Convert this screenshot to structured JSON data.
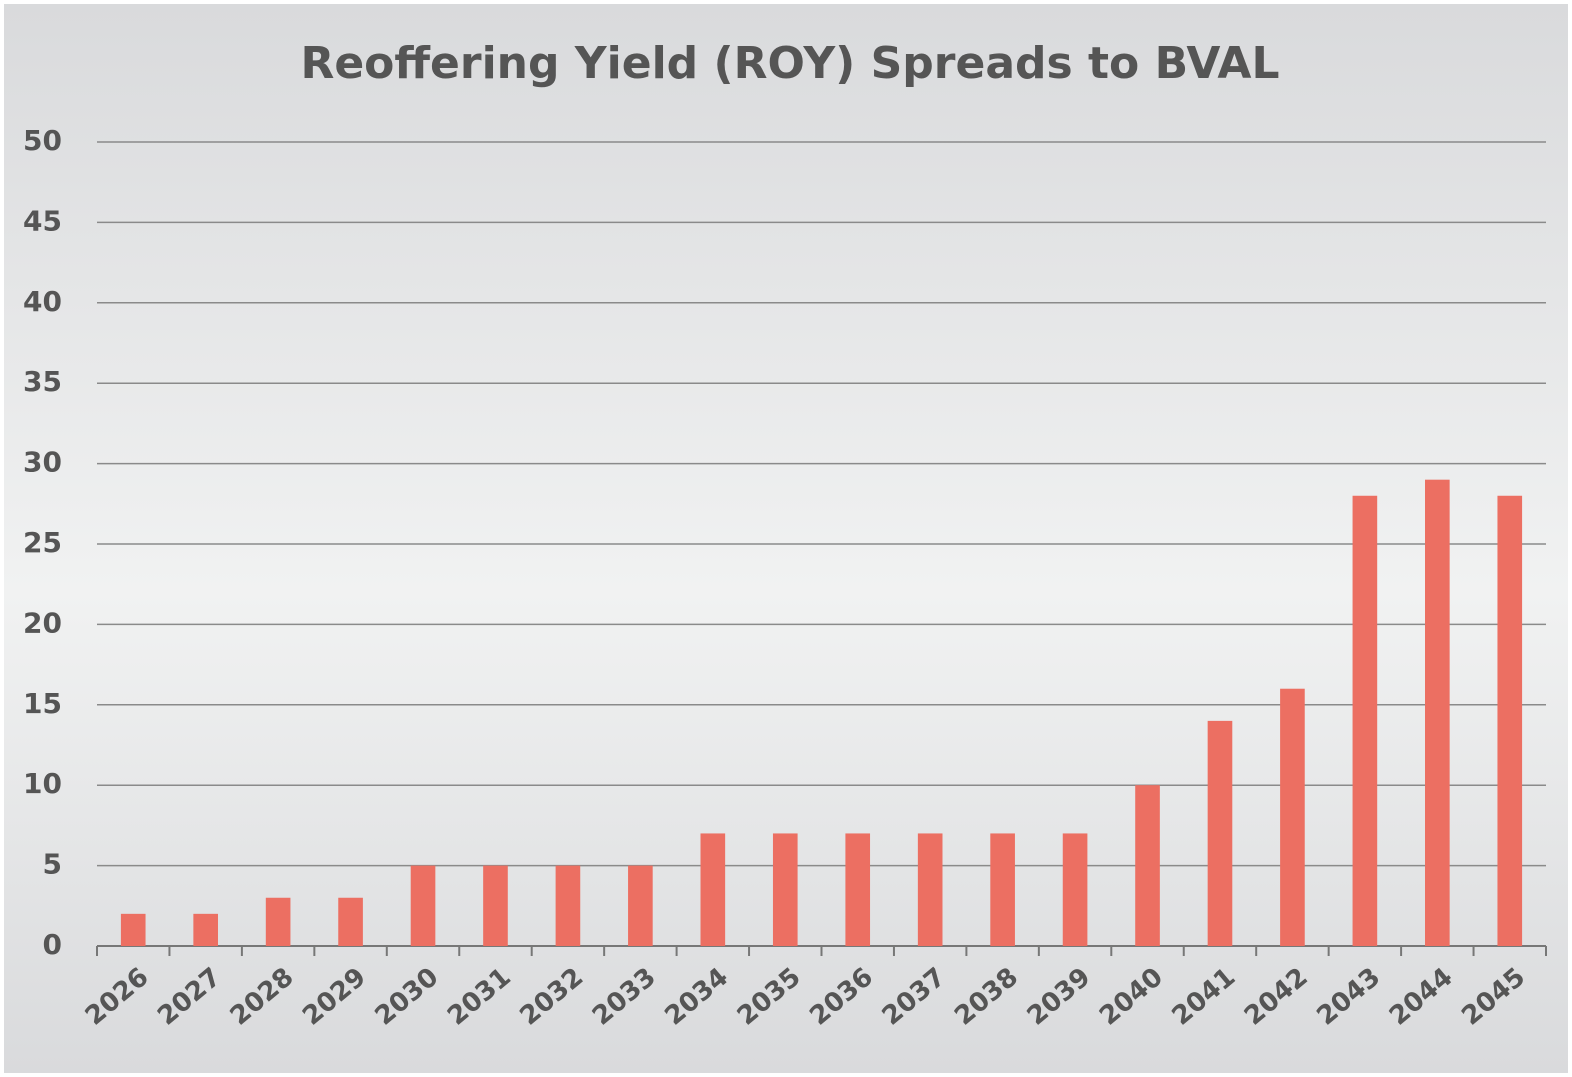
{
  "chart_data": {
    "type": "bar",
    "title": "Reoffering Yield (ROY) Spreads to BVAL",
    "categories": [
      "2026",
      "2027",
      "2028",
      "2029",
      "2030",
      "2031",
      "2032",
      "2033",
      "2034",
      "2035",
      "2036",
      "2037",
      "2038",
      "2039",
      "2040",
      "2041",
      "2042",
      "2043",
      "2044",
      "2045"
    ],
    "values": [
      2,
      2,
      3,
      3,
      5,
      5,
      5,
      5,
      7,
      7,
      7,
      7,
      7,
      7,
      10,
      14,
      16,
      28,
      29,
      28
    ],
    "color": "#ec6f62",
    "ylim": [
      0,
      50
    ],
    "yticks": [
      0,
      5,
      10,
      15,
      20,
      25,
      30,
      35,
      40,
      45,
      50
    ],
    "grid": true
  }
}
